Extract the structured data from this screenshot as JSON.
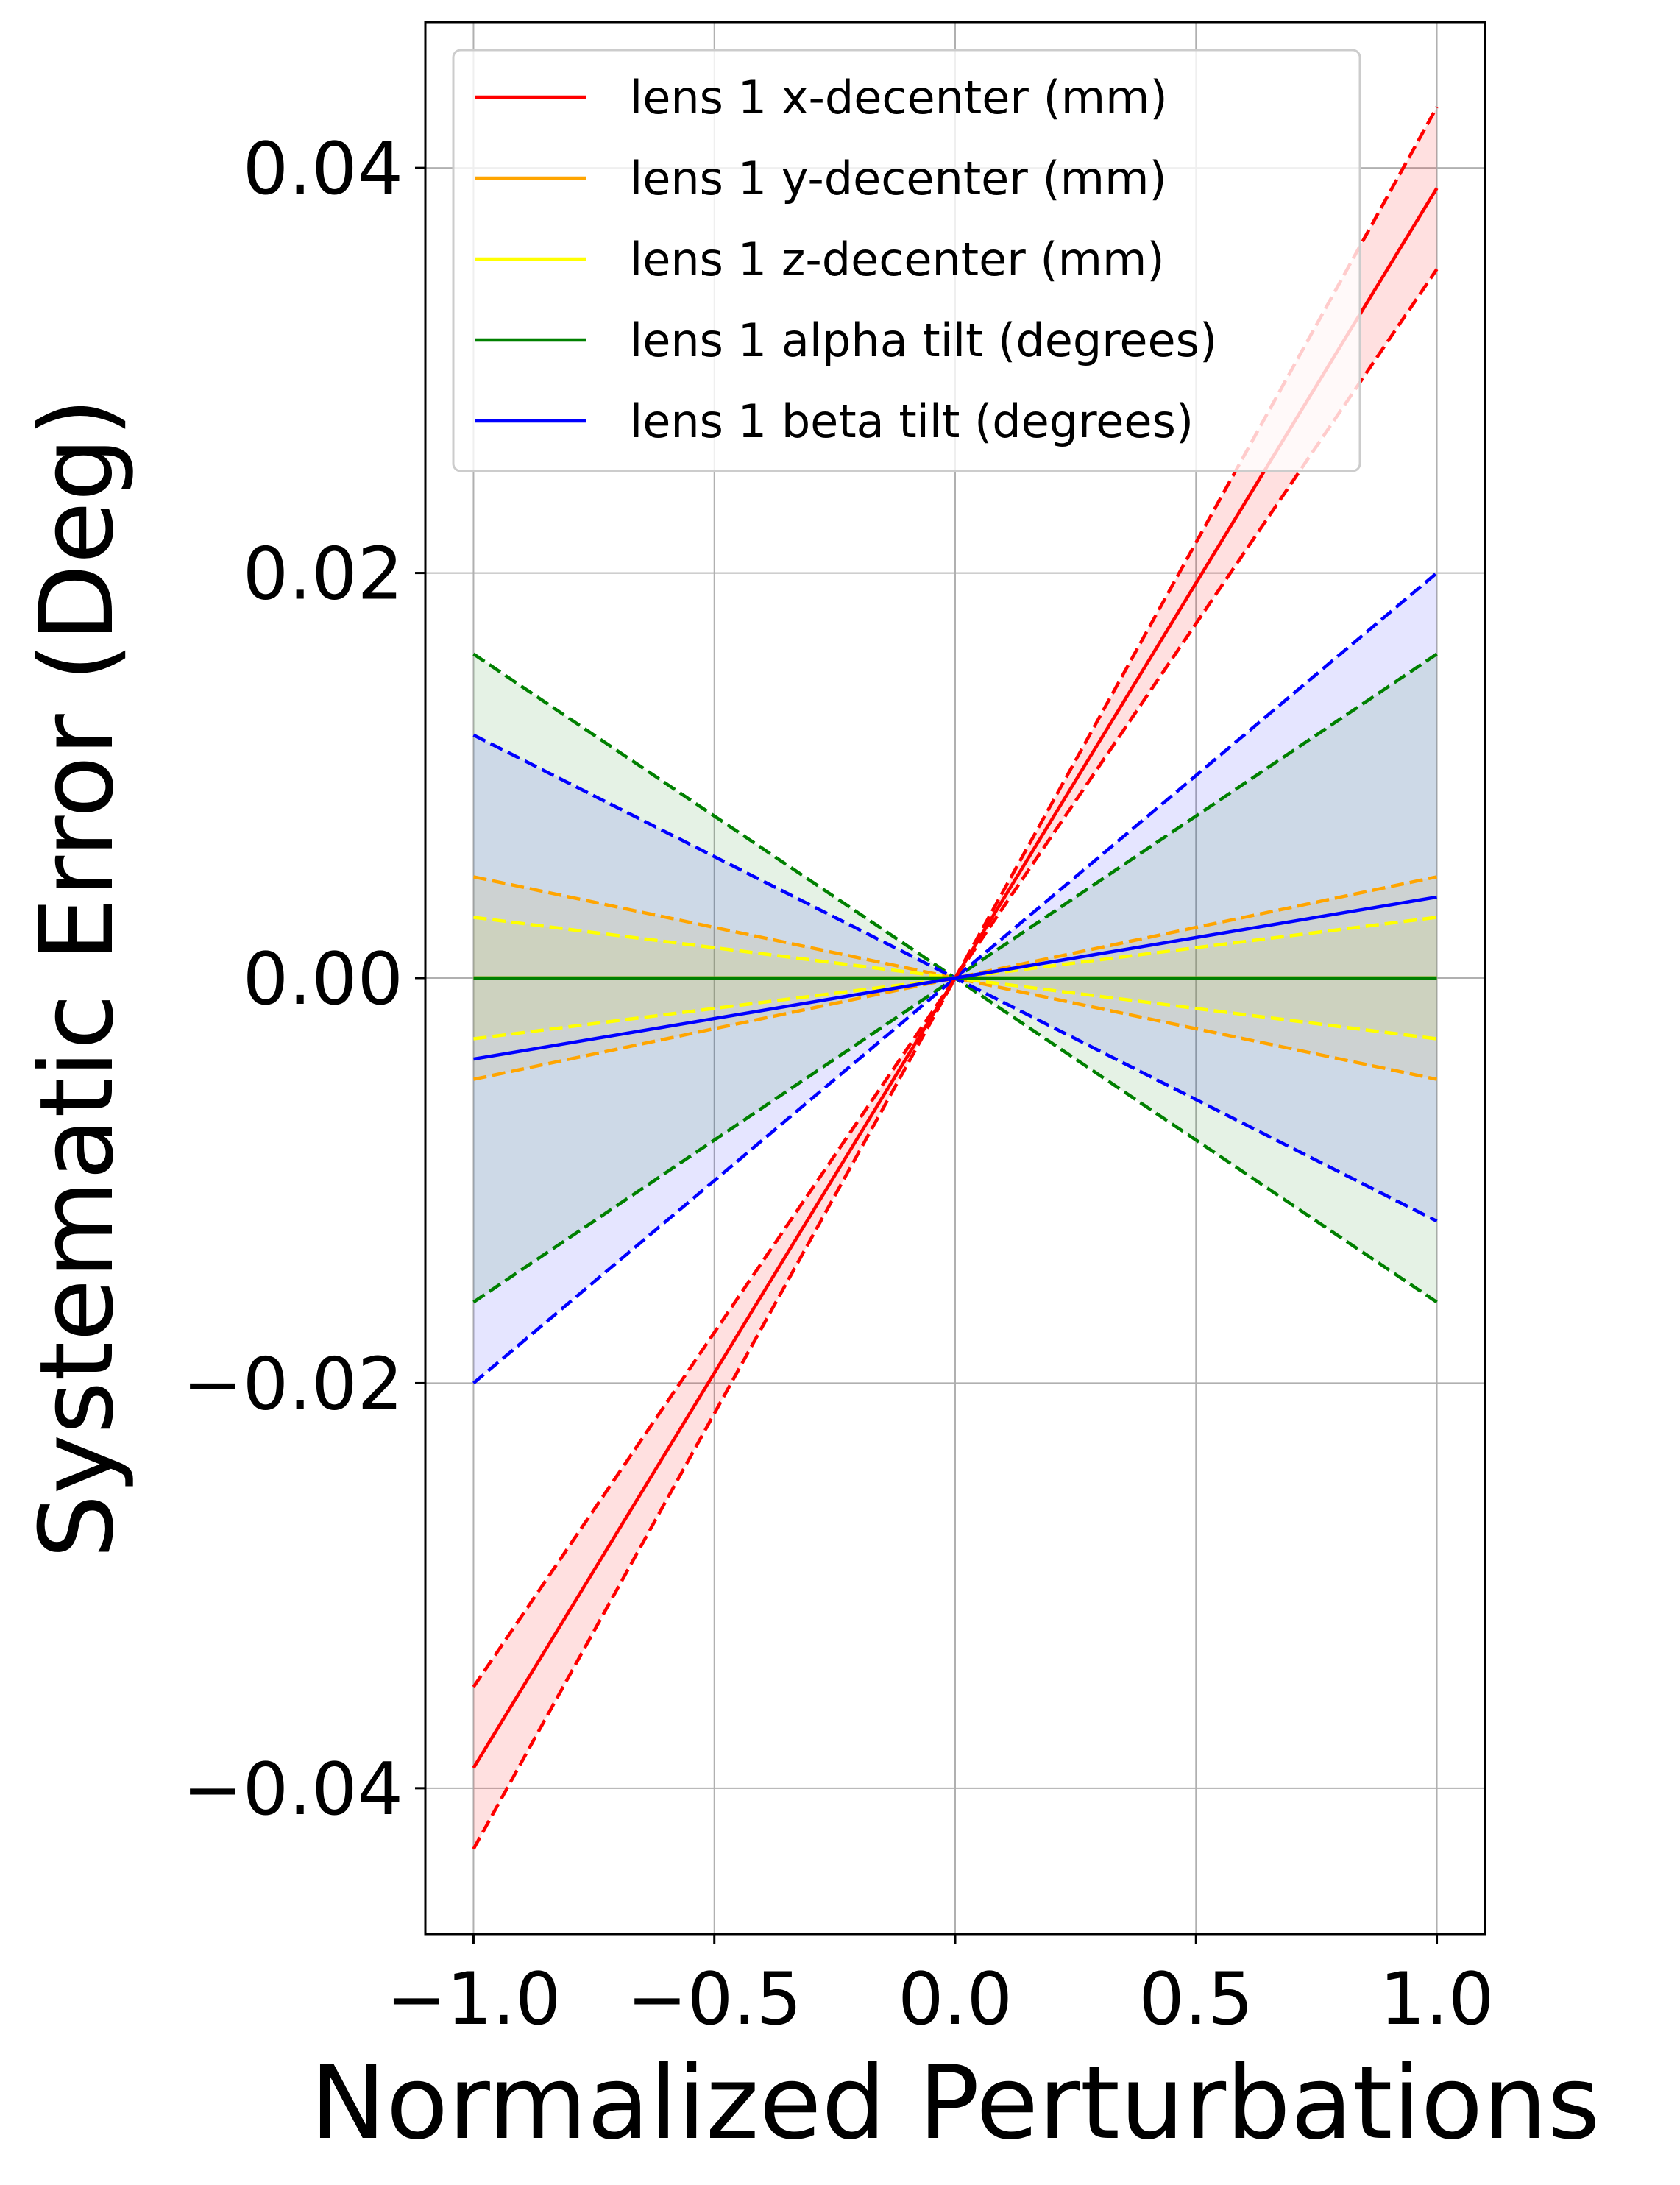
{
  "chart_data": {
    "type": "line",
    "title": "",
    "xlabel": "Normalized Perturbations",
    "ylabel": "Systematic Error (Deg)",
    "xlim": [
      -1.1,
      1.1
    ],
    "ylim": [
      -0.0472,
      0.0472
    ],
    "xticks": [
      -1.0,
      -0.5,
      0.0,
      0.5,
      1.0
    ],
    "xtick_labels": [
      "−1.0",
      "−0.5",
      "0.0",
      "0.5",
      "1.0"
    ],
    "yticks": [
      -0.04,
      -0.02,
      0.0,
      0.02,
      0.04
    ],
    "ytick_labels": [
      "−0.04",
      "−0.02",
      "0.00",
      "0.02",
      "0.04"
    ],
    "grid": true,
    "legend_position": "top-center",
    "x": [
      -1.0,
      0.0,
      1.0
    ],
    "series": [
      {
        "name": "lens 1 x-decenter (mm)",
        "color": "#ff0000",
        "fill_color": "#ff0000",
        "fill_opacity": 0.12,
        "slope": 0.039,
        "upper_slope": 0.043,
        "lower_slope": 0.035,
        "values": [
          -0.039,
          0.0,
          0.039
        ]
      },
      {
        "name": "lens 1 y-decenter (mm)",
        "color": "#ffa500",
        "fill_color": "#ffa500",
        "fill_opacity": 0.1,
        "slope": 0.0,
        "upper_slope": 0.005,
        "lower_slope": -0.005,
        "values": [
          0.0,
          0.0,
          0.0
        ]
      },
      {
        "name": "lens 1 z-decenter (mm)",
        "color": "#ffff00",
        "fill_color": "#ffff00",
        "fill_opacity": 0.1,
        "slope": 0.0,
        "upper_slope": 0.003,
        "lower_slope": -0.003,
        "values": [
          0.0,
          0.0,
          0.0
        ]
      },
      {
        "name": "lens 1 alpha tilt (degrees)",
        "color": "#008000",
        "fill_color": "#008000",
        "fill_opacity": 0.1,
        "slope": 0.0,
        "upper_slope": 0.016,
        "lower_slope": -0.016,
        "values": [
          0.0,
          0.0,
          0.0
        ]
      },
      {
        "name": "lens 1 beta tilt (degrees)",
        "color": "#0000ff",
        "fill_color": "#0000ff",
        "fill_opacity": 0.1,
        "slope": 0.004,
        "upper_slope": 0.02,
        "lower_slope": -0.012,
        "values": [
          -0.004,
          0.0,
          0.004
        ]
      }
    ]
  }
}
